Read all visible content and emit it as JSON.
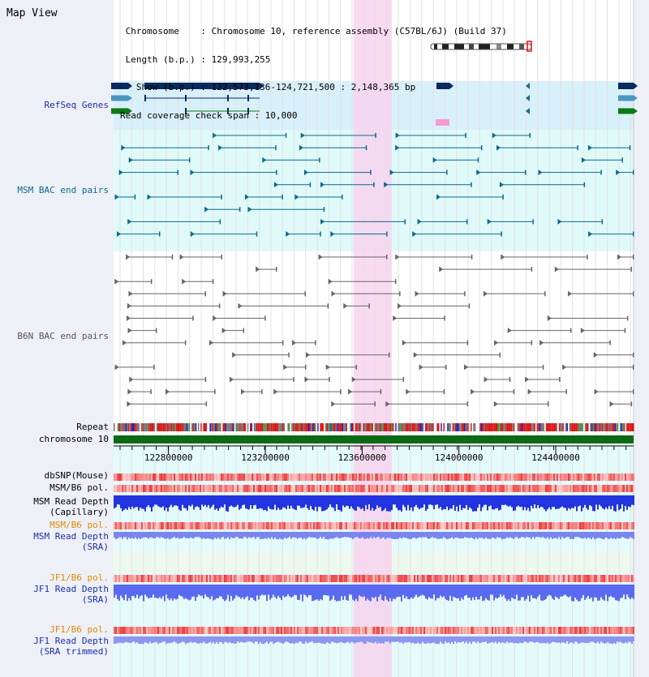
{
  "header": {
    "title": "Map View",
    "info_lines": [
      " Chromosome    : Chromosome 10, reference assembly (C57BL/6J) (Build 37)",
      " Length (b.p.) : 129,993,255",
      "   Show (b.p.) : 122,573,136-124,721,500 : 2,148,365 bp",
      "Read coverage check span : 10,000"
    ]
  },
  "tracks": {
    "refseq": "RefSeq Genes",
    "msm_bac": "MSM BAC end pairs",
    "b6n_bac": "B6N BAC end pairs",
    "repeat": "Repeat",
    "chromosome": "chromosome 10",
    "dbsnp": "dbSNP(Mouse)",
    "msm_b6_pol": "MSM/B6 pol.",
    "msm_depth_cap_1": "MSM Read Depth",
    "msm_depth_cap_2": "(Capillary)",
    "msm_b6_pol_2": "MSM/B6 pol.",
    "msm_depth_sra_1": "MSM Read Depth",
    "msm_depth_sra_2": "(SRA)",
    "jf1_b6_pol": "JF1/B6 pol.",
    "jf1_depth_sra_1": "JF1 Read Depth",
    "jf1_depth_sra_2": "(SRA)",
    "jf1_b6_pol_2": "JF1/B6 pol.",
    "jf1_depth_trim_1": "JF1 Read Depth",
    "jf1_depth_trim_2": "(SRA trimmed)"
  },
  "axis": {
    "ticks": [
      {
        "value": 122800000,
        "label": "122800000"
      },
      {
        "value": 123200000,
        "label": "123200000"
      },
      {
        "value": 123600000,
        "label": "123600000"
      },
      {
        "value": 124000000,
        "label": "124000000"
      },
      {
        "value": 124400000,
        "label": "124400000"
      }
    ]
  },
  "colors": {
    "highlight": "#f7d4ee",
    "refseq_bg": "#d8f0fa",
    "msm_bg": "#e0fafa",
    "gene_dark": "#0a2a5e",
    "gene_mid": "#4a96c0",
    "gene_green": "#0a7a14",
    "chrom_green": "#0b6a14",
    "bac_teal": "#0a6a8c",
    "bac_grey": "#666666",
    "snp_red": "#e83a3a",
    "depth_blue": "#2233e0",
    "depth_light": "#7a86f0"
  }
}
